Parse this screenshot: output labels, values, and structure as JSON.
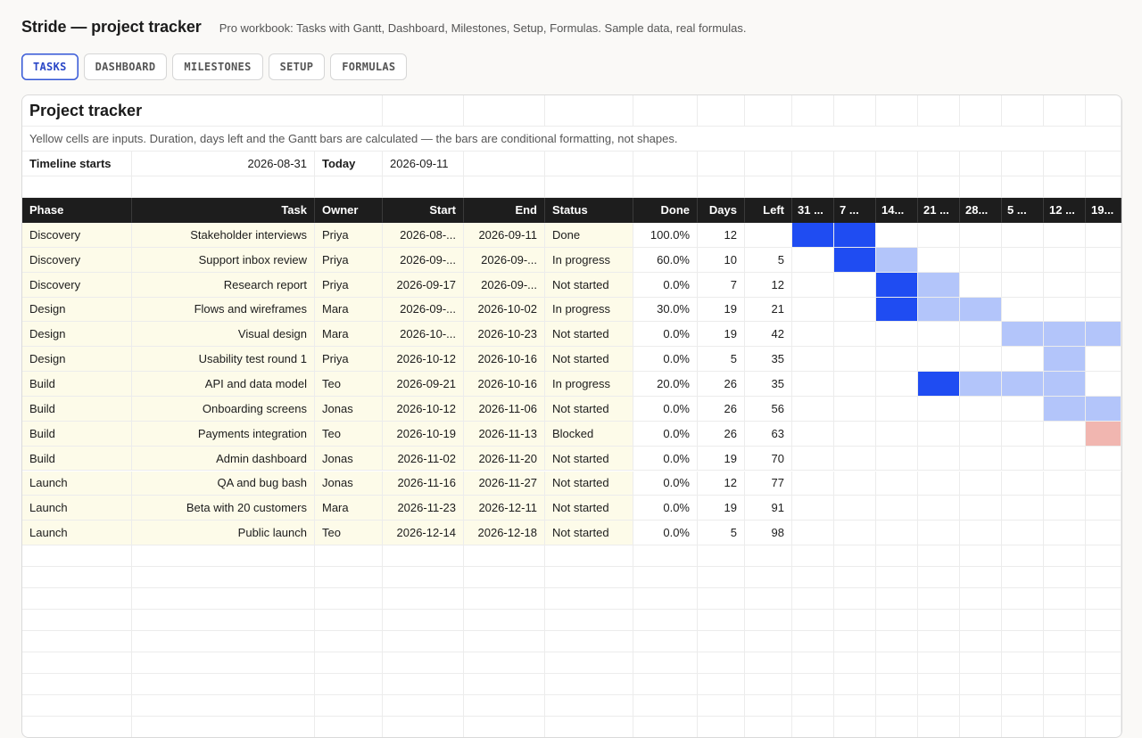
{
  "app": {
    "title": "Stride — project tracker",
    "subtitle": "Pro workbook: Tasks with Gantt, Dashboard, Milestones, Setup, Formulas. Sample data, real formulas."
  },
  "tabs": [
    {
      "label": "TASKS",
      "active": true
    },
    {
      "label": "DASHBOARD",
      "active": false
    },
    {
      "label": "MILESTONES",
      "active": false
    },
    {
      "label": "SETUP",
      "active": false
    },
    {
      "label": "FORMULAS",
      "active": false
    }
  ],
  "sheet": {
    "title": "Project tracker",
    "note": "Yellow cells are inputs. Duration, days left and the Gantt bars are calculated — the bars are conditional formatting, not shapes.",
    "timeline_label": "Timeline starts",
    "timeline_value": "2026-08-31",
    "today_label": "Today",
    "today_value": "2026-09-11",
    "headers": [
      "Phase",
      "Task",
      "Owner",
      "Start",
      "End",
      "Status",
      "Done",
      "Days",
      "Left"
    ],
    "gantt_headers": [
      "31 ...",
      "7 ...",
      "14...",
      "21 ...",
      "28...",
      "5 ...",
      "12 ...",
      "19..."
    ],
    "rows": [
      {
        "phase": "Discovery",
        "task": "Stakeholder interviews",
        "owner": "Priya",
        "start": "2026-08-...",
        "end": "2026-09-11",
        "status": "Done",
        "done": "100.0%",
        "days": "12",
        "left": "",
        "gantt": [
          "strong",
          "strong",
          "",
          "",
          "",
          "",
          "",
          ""
        ]
      },
      {
        "phase": "Discovery",
        "task": "Support inbox review",
        "owner": "Priya",
        "start": "2026-09-...",
        "end": "2026-09-...",
        "status": "In progress",
        "done": "60.0%",
        "days": "10",
        "left": "5",
        "gantt": [
          "",
          "strong",
          "light",
          "",
          "",
          "",
          "",
          ""
        ]
      },
      {
        "phase": "Discovery",
        "task": "Research report",
        "owner": "Priya",
        "start": "2026-09-17",
        "end": "2026-09-...",
        "status": "Not started",
        "done": "0.0%",
        "days": "7",
        "left": "12",
        "gantt": [
          "",
          "",
          "strong",
          "light",
          "",
          "",
          "",
          ""
        ]
      },
      {
        "phase": "Design",
        "task": "Flows and wireframes",
        "owner": "Mara",
        "start": "2026-09-...",
        "end": "2026-10-02",
        "status": "In progress",
        "done": "30.0%",
        "days": "19",
        "left": "21",
        "gantt": [
          "",
          "",
          "strong",
          "light",
          "light",
          "",
          "",
          ""
        ]
      },
      {
        "phase": "Design",
        "task": "Visual design",
        "owner": "Mara",
        "start": "2026-10-...",
        "end": "2026-10-23",
        "status": "Not started",
        "done": "0.0%",
        "days": "19",
        "left": "42",
        "gantt": [
          "",
          "",
          "",
          "",
          "",
          "light",
          "light",
          "light"
        ]
      },
      {
        "phase": "Design",
        "task": "Usability test round 1",
        "owner": "Priya",
        "start": "2026-10-12",
        "end": "2026-10-16",
        "status": "Not started",
        "done": "0.0%",
        "days": "5",
        "left": "35",
        "gantt": [
          "",
          "",
          "",
          "",
          "",
          "",
          "light",
          ""
        ]
      },
      {
        "phase": "Build",
        "task": "API and data model",
        "owner": "Teo",
        "start": "2026-09-21",
        "end": "2026-10-16",
        "status": "In progress",
        "done": "20.0%",
        "days": "26",
        "left": "35",
        "gantt": [
          "",
          "",
          "",
          "strong",
          "light",
          "light",
          "light",
          ""
        ]
      },
      {
        "phase": "Build",
        "task": "Onboarding screens",
        "owner": "Jonas",
        "start": "2026-10-12",
        "end": "2026-11-06",
        "status": "Not started",
        "done": "0.0%",
        "days": "26",
        "left": "56",
        "gantt": [
          "",
          "",
          "",
          "",
          "",
          "",
          "light",
          "light"
        ]
      },
      {
        "phase": "Build",
        "task": "Payments integration",
        "owner": "Teo",
        "start": "2026-10-19",
        "end": "2026-11-13",
        "status": "Blocked",
        "done": "0.0%",
        "days": "26",
        "left": "63",
        "gantt": [
          "",
          "",
          "",
          "",
          "",
          "",
          "",
          "blocked"
        ]
      },
      {
        "phase": "Build",
        "task": "Admin dashboard",
        "owner": "Jonas",
        "start": "2026-11-02",
        "end": "2026-11-20",
        "status": "Not started",
        "done": "0.0%",
        "days": "19",
        "left": "70",
        "gantt": [
          "",
          "",
          "",
          "",
          "",
          "",
          "",
          ""
        ]
      },
      {
        "phase": "Launch",
        "task": "QA and bug bash",
        "owner": "Jonas",
        "start": "2026-11-16",
        "end": "2026-11-27",
        "status": "Not started",
        "done": "0.0%",
        "days": "12",
        "left": "77",
        "gantt": [
          "",
          "",
          "",
          "",
          "",
          "",
          "",
          ""
        ]
      },
      {
        "phase": "Launch",
        "task": "Beta with 20 customers",
        "owner": "Mara",
        "start": "2026-11-23",
        "end": "2026-12-11",
        "status": "Not started",
        "done": "0.0%",
        "days": "19",
        "left": "91",
        "gantt": [
          "",
          "",
          "",
          "",
          "",
          "",
          "",
          ""
        ]
      },
      {
        "phase": "Launch",
        "task": "Public launch",
        "owner": "Teo",
        "start": "2026-12-14",
        "end": "2026-12-18",
        "status": "Not started",
        "done": "0.0%",
        "days": "5",
        "left": "98",
        "gantt": [
          "",
          "",
          "",
          "",
          "",
          "",
          "",
          ""
        ]
      }
    ]
  },
  "colors": {
    "gantt_in_progress": "#1f4cf2",
    "gantt_planned": "#b3c5fa",
    "gantt_blocked": "#f1b6b0",
    "input_cell": "#fdfbe9",
    "header_bg": "#1d1d1d",
    "tab_active": "#3154d6"
  }
}
